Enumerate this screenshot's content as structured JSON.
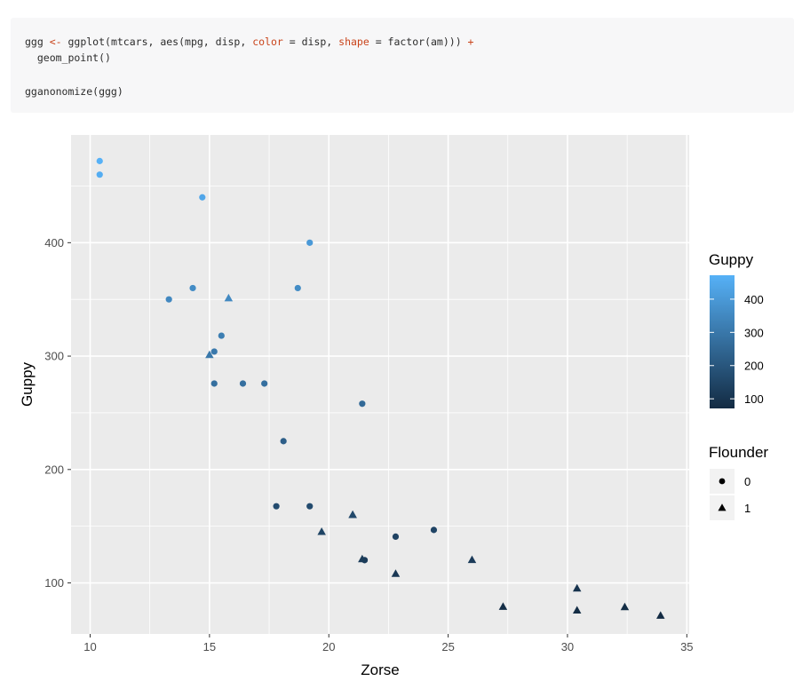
{
  "code": {
    "line1_prefix": "ggg ",
    "line1_assign": "<-",
    "line1_mid": " ggplot(mtcars, aes(mpg, disp, ",
    "line1_color_kw": "color",
    "line1_color_val": " = disp, ",
    "line1_shape_kw": "shape",
    "line1_shape_val": " = factor(am))) ",
    "line1_plus": "+",
    "line2": "  geom_point()",
    "line4": "gganonomize(ggg)"
  },
  "colors": {
    "code_keyword": "#c9431a",
    "panel_bg": "#ebebeb",
    "grid": "#ffffff",
    "scale_low": "#132b43",
    "scale_high": "#56b1f7"
  },
  "chart_data": {
    "type": "scatter",
    "xlabel": "Zorse",
    "ylabel": "Guppy",
    "xlim": [
      9.2,
      35.1
    ],
    "ylim": [
      55,
      495
    ],
    "x_ticks": [
      10,
      15,
      20,
      25,
      30,
      35
    ],
    "y_ticks": [
      100,
      200,
      300,
      400
    ],
    "grid": true,
    "color_legend": {
      "title": "Guppy",
      "range": [
        71,
        472
      ],
      "ticks": [
        100,
        200,
        300,
        400
      ]
    },
    "shape_legend": {
      "title": "Flounder",
      "items": [
        {
          "label": "0",
          "shape": "circle"
        },
        {
          "label": "1",
          "shape": "triangle"
        }
      ]
    },
    "points": [
      {
        "x": 21.0,
        "y": 160,
        "g": 1
      },
      {
        "x": 21.0,
        "y": 160,
        "g": 1
      },
      {
        "x": 22.8,
        "y": 108,
        "g": 1
      },
      {
        "x": 21.4,
        "y": 258,
        "g": 0
      },
      {
        "x": 18.7,
        "y": 360,
        "g": 0
      },
      {
        "x": 18.1,
        "y": 225,
        "g": 0
      },
      {
        "x": 14.3,
        "y": 360,
        "g": 0
      },
      {
        "x": 24.4,
        "y": 146.7,
        "g": 0
      },
      {
        "x": 22.8,
        "y": 140.8,
        "g": 0
      },
      {
        "x": 19.2,
        "y": 167.6,
        "g": 0
      },
      {
        "x": 17.8,
        "y": 167.6,
        "g": 0
      },
      {
        "x": 16.4,
        "y": 275.8,
        "g": 0
      },
      {
        "x": 17.3,
        "y": 275.8,
        "g": 0
      },
      {
        "x": 15.2,
        "y": 275.8,
        "g": 0
      },
      {
        "x": 10.4,
        "y": 472,
        "g": 0
      },
      {
        "x": 10.4,
        "y": 460,
        "g": 0
      },
      {
        "x": 14.7,
        "y": 440,
        "g": 0
      },
      {
        "x": 32.4,
        "y": 78.7,
        "g": 1
      },
      {
        "x": 30.4,
        "y": 75.7,
        "g": 1
      },
      {
        "x": 33.9,
        "y": 71.1,
        "g": 1
      },
      {
        "x": 21.5,
        "y": 120.1,
        "g": 0
      },
      {
        "x": 15.5,
        "y": 318,
        "g": 0
      },
      {
        "x": 15.2,
        "y": 304,
        "g": 0
      },
      {
        "x": 13.3,
        "y": 350,
        "g": 0
      },
      {
        "x": 19.2,
        "y": 400,
        "g": 0
      },
      {
        "x": 27.3,
        "y": 79,
        "g": 1
      },
      {
        "x": 26.0,
        "y": 120.3,
        "g": 1
      },
      {
        "x": 30.4,
        "y": 95.1,
        "g": 1
      },
      {
        "x": 15.8,
        "y": 351,
        "g": 1
      },
      {
        "x": 19.7,
        "y": 145,
        "g": 1
      },
      {
        "x": 15.0,
        "y": 301,
        "g": 1
      },
      {
        "x": 21.4,
        "y": 121,
        "g": 1
      }
    ]
  }
}
